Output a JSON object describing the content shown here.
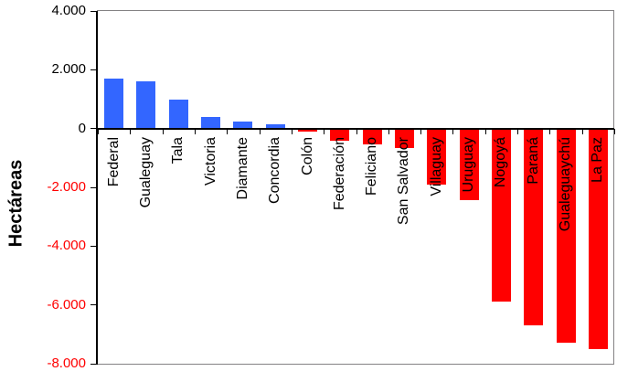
{
  "chart_data": {
    "type": "bar",
    "title": "",
    "xlabel": "",
    "ylabel": "Hectáreas",
    "categories": [
      "Federal",
      "Gualeguay",
      "Tala",
      "Victoria",
      "Diamante",
      "Concordia",
      "Colón",
      "Federación",
      "Feliciano",
      "San Salvador",
      "Villaguay",
      "Uruguay",
      "Nogoyá",
      "Paraná",
      "Gualeguaychú",
      "La Paz"
    ],
    "values": [
      1700,
      1600,
      1000,
      400,
      230,
      130,
      -100,
      -400,
      -530,
      -650,
      -1900,
      -2450,
      -5900,
      -6700,
      -7300,
      -7500
    ],
    "ylim": [
      -8000,
      4000
    ],
    "yticks": [
      {
        "value": 4000,
        "label": "4.000"
      },
      {
        "value": 2000,
        "label": "2.000"
      },
      {
        "value": 0,
        "label": "0"
      },
      {
        "value": -2000,
        "label": "-2.000"
      },
      {
        "value": -4000,
        "label": "-4.000"
      },
      {
        "value": -6000,
        "label": "-6.000"
      },
      {
        "value": -8000,
        "label": "-8.000"
      }
    ],
    "grid": false,
    "legend": false,
    "layout": "vertical bars, category labels rotated 90deg CCW below zero axis",
    "colors": {
      "positive": "#3366FF",
      "negative": "#FF0000",
      "positive_tick_label": "#000000",
      "negative_tick_label": "#FF0000",
      "category_label": "#000000",
      "frame": "#848284",
      "axis": "#000000",
      "background": "#FFFFFF"
    }
  }
}
